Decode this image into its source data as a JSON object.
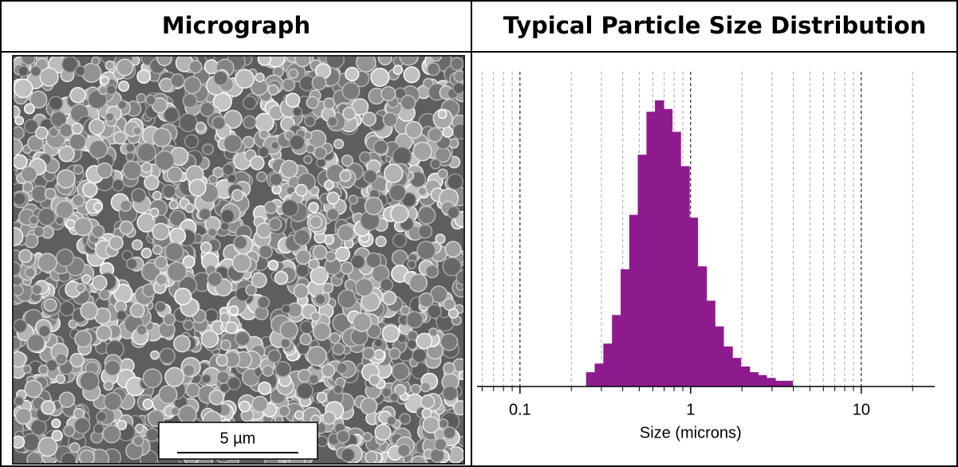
{
  "header": {
    "left": "Micrograph",
    "right": "Typical Particle Size Distribution"
  },
  "micrograph": {
    "scale_bar": "5 µm"
  },
  "chart_data": {
    "type": "histogram",
    "xlabel": "Size (microns)",
    "log_x": true,
    "xlim": [
      0.056,
      27
    ],
    "xticks": [
      0.1,
      1,
      10
    ],
    "minor_xticks": [
      0.06,
      0.07,
      0.08,
      0.09,
      0.2,
      0.3,
      0.4,
      0.5,
      0.6,
      0.7,
      0.8,
      0.9,
      2,
      3,
      4,
      5,
      6,
      7,
      8,
      9,
      20
    ],
    "bins": [
      0.244,
      0.274,
      0.308,
      0.346,
      0.389,
      0.437,
      0.49,
      0.551,
      0.618,
      0.695,
      0.78,
      0.875,
      0.984,
      1.1,
      1.24,
      1.39,
      1.56,
      1.76,
      1.97,
      2.22,
      2.49,
      2.79,
      3.14,
      3.52,
      3.96
    ],
    "values": [
      5,
      8,
      15,
      25,
      41,
      60,
      81,
      96,
      100,
      97,
      89,
      77,
      59,
      42,
      30,
      21,
      14,
      10,
      7,
      5,
      4,
      3,
      2,
      2
    ],
    "ylim": [
      0,
      110
    ],
    "color": "#8e1b8e",
    "grid": true
  }
}
